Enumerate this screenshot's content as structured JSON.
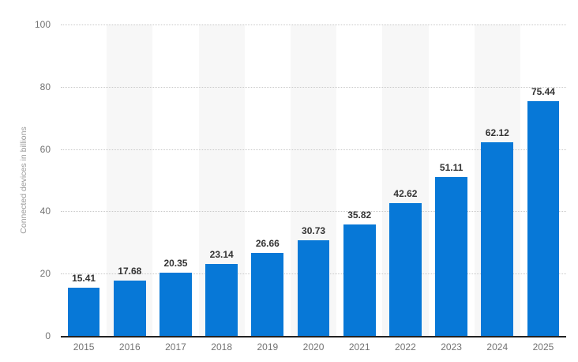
{
  "chart_data": {
    "type": "bar",
    "title": "",
    "xlabel": "",
    "ylabel": "Connected devices in billions",
    "categories": [
      "2015",
      "2016",
      "2017",
      "2018",
      "2019",
      "2020",
      "2021",
      "2022",
      "2023",
      "2024",
      "2025"
    ],
    "values": [
      15.41,
      17.68,
      20.35,
      23.14,
      26.66,
      30.73,
      35.82,
      42.62,
      51.11,
      62.12,
      75.44
    ],
    "value_labels": [
      "15.41",
      "17.68",
      "20.35",
      "23.14",
      "26.66",
      "30.73",
      "35.82",
      "42.62",
      "51.11",
      "62.12",
      "75.44"
    ],
    "ylim": [
      0,
      100
    ],
    "yticks": [
      0,
      20,
      40,
      60,
      80,
      100
    ],
    "grid": "horizontal-dotted",
    "legend_position": "none",
    "band_pattern": "alternating-columns",
    "colors": {
      "bar": "#0778d7",
      "band": "#f7f7f7",
      "gridline": "#c9c9c9",
      "axis_line": "#222222",
      "value_label": "#333333",
      "tick_label": "#737373",
      "axis_title": "#9a9a9a",
      "background": "#ffffff"
    }
  }
}
